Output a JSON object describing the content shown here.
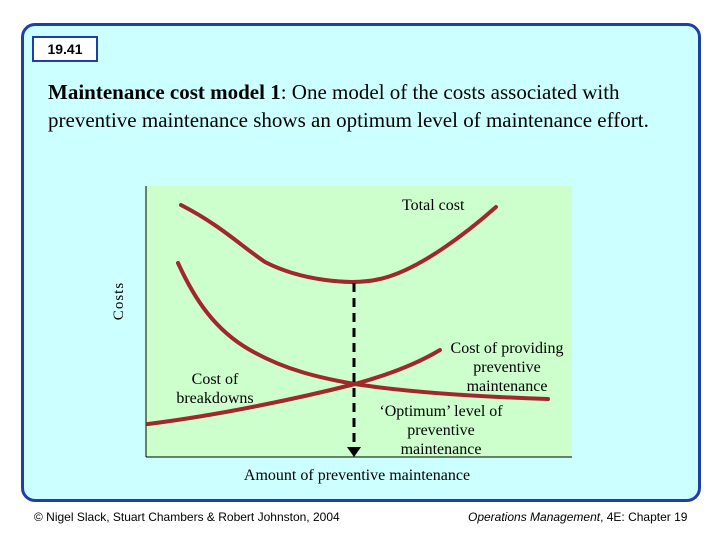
{
  "slide": {
    "badge": "19.41",
    "title_bold": "Maintenance cost model 1",
    "title_rest": ": One model of the costs associated with preventive maintenance shows an optimum level of maintenance effort.",
    "footer_left": "© Nigel Slack, Stuart Chambers & Robert Johnston, 2004",
    "footer_right_italic": "Operations Management",
    "footer_right_rest": ", 4E: Chapter 19"
  },
  "diagram": {
    "y_axis_label": "Costs",
    "x_axis_label": "Amount of preventive maintenance",
    "curves": {
      "total": "Total cost",
      "providing": [
        "Cost of providing",
        "preventive",
        "maintenance"
      ],
      "breakdowns": [
        "Cost of",
        "breakdowns"
      ]
    },
    "optimum": [
      "‘Optimum’ level of",
      "preventive",
      "maintenance"
    ]
  },
  "colors": {
    "frame_border": "#1f3ea8",
    "frame_fill": "#ccffff",
    "plot_fill": "#ccffcc",
    "curve": "#a0282a",
    "axis": "#000000"
  }
}
